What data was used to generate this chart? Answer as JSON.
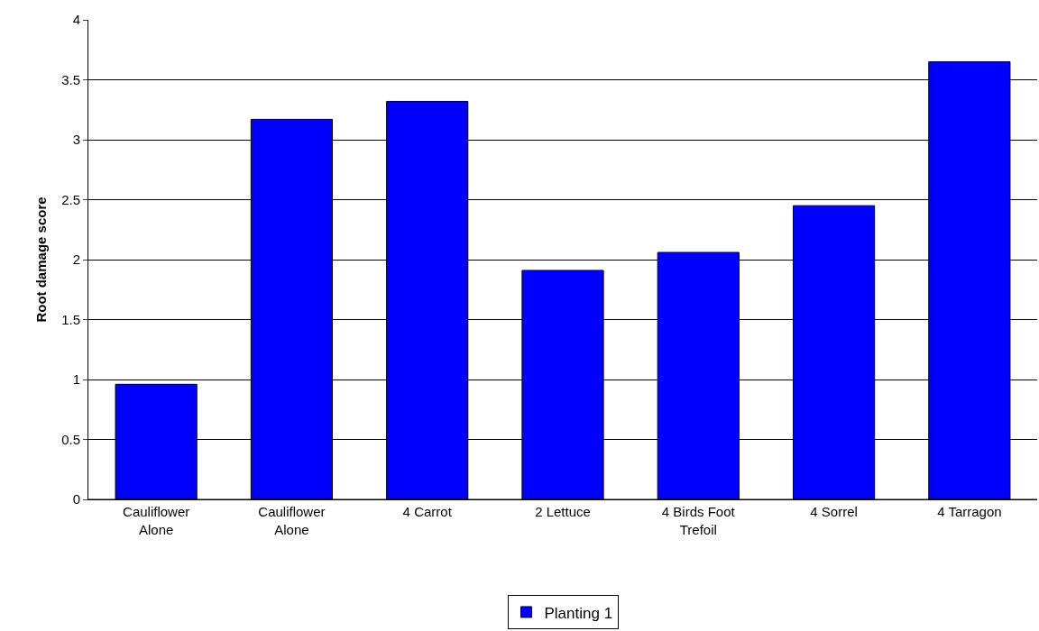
{
  "chart_data": {
    "type": "bar",
    "ylabel": "Root damage score",
    "categories": [
      "Cauliflower Alone",
      "Cauliflower Alone",
      "4 Carrot",
      "2 Lettuce",
      "4 Birds Foot Trefoil",
      "4 Sorrel",
      "4 Tarragon"
    ],
    "series": [
      {
        "name": "Planting 1",
        "color": "#0000ff",
        "values": [
          0.96,
          3.17,
          3.32,
          1.91,
          2.06,
          2.45,
          3.65
        ]
      }
    ],
    "ylim": [
      0,
      4
    ],
    "yticks": [
      0,
      0.5,
      1,
      1.5,
      2,
      2.5,
      3,
      3.5,
      4
    ],
    "grid": "y",
    "legend": "bottom"
  }
}
